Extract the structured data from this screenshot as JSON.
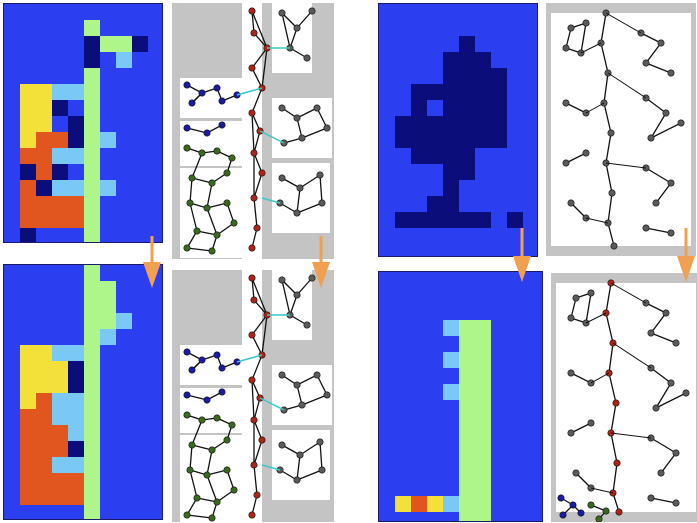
{
  "figure": {
    "panels": [
      {
        "id": "grid-top-left",
        "kind": "grid"
      },
      {
        "id": "map-top-left",
        "kind": "map"
      },
      {
        "id": "grid-bottom-left",
        "kind": "grid"
      },
      {
        "id": "map-bottom-left",
        "kind": "map"
      },
      {
        "id": "grid-top-right",
        "kind": "grid"
      },
      {
        "id": "map-top-right",
        "kind": "map"
      },
      {
        "id": "grid-bottom-right",
        "kind": "grid"
      },
      {
        "id": "map-bottom-right",
        "kind": "map"
      }
    ],
    "colors": {
      "background_blue": "#2b3ff0",
      "dark_navy": "#0a0d7a",
      "light_green": "#aef58a",
      "light_blue": "#7ac8f5",
      "yellow": "#f3e03a",
      "orange": "#e0561e",
      "map_gray": "#c4c4c4",
      "node_red": "#b02418",
      "node_blue": "#1a1aa8",
      "node_green": "#3a6a1e",
      "node_gray": "#5a5a5a",
      "edge_cyan": "#3ac8c8",
      "arrow": "#f0a050"
    },
    "arrows": [
      {
        "name": "arrow-left-grid",
        "direction": "down"
      },
      {
        "name": "arrow-left-map",
        "direction": "down"
      },
      {
        "name": "arrow-right-grid",
        "direction": "down"
      },
      {
        "name": "arrow-right-map",
        "direction": "down"
      }
    ]
  }
}
